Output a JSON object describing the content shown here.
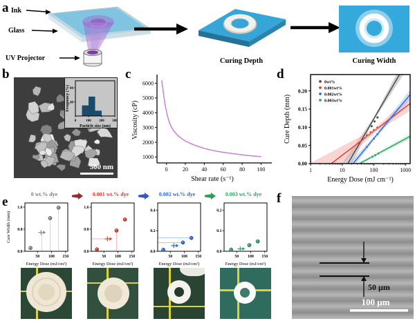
{
  "panels": {
    "a": "a",
    "b": "b",
    "c": "c",
    "d": "d",
    "e": "e",
    "f": "f"
  },
  "panel_a": {
    "ink_label": "Ink",
    "glass_label": "Glass",
    "uv_label": "UV Projector",
    "curing_depth_caption": "Curing Depth",
    "curing_width_caption": "Curing Width",
    "colors": {
      "slab_blue": "#35a8dc",
      "ink_blue": "#7cc3e2",
      "uv_purple": "#9d63cc"
    }
  },
  "panel_b": {
    "scale_bar_label": "500 nm"
  },
  "panel_e": {
    "ylabel": "Cure Width (mm)",
    "xlabel": "Energy Dose (mJ/cm²)",
    "titles": [
      {
        "label": "0 wt.% dye",
        "color": "#7f7f7f"
      },
      {
        "label": "0.001 wt.% dye",
        "color": "#e8392f"
      },
      {
        "label": "0.002 wt.% dye",
        "color": "#2d6ae3"
      },
      {
        "label": "0.003 wt.% dye",
        "color": "#27a85f"
      }
    ],
    "arrows": [
      "#8f2f2f",
      "#3a55c0",
      "#2f9e55"
    ]
  },
  "panel_f": {
    "gap_label": "50 µm",
    "scale_bar_label": "100 µm"
  },
  "chart_data": [
    {
      "id": "particle-hist",
      "type": "bar",
      "xlabel": "Particle size (nm)",
      "ylabel": "Frequency (%)",
      "xlim": [
        0,
        300
      ],
      "ylim": [
        0,
        100
      ],
      "xticks": [
        0,
        100,
        200,
        300
      ],
      "yticks": [
        40,
        80
      ],
      "bars": [
        {
          "from": 50,
          "to": 100,
          "value": 30
        },
        {
          "from": 100,
          "to": 150,
          "value": 55
        },
        {
          "from": 150,
          "to": 200,
          "value": 15
        }
      ],
      "bar_color": "#1b4a6b"
    },
    {
      "id": "viscosity",
      "type": "line",
      "xlabel": "Shear rate (s⁻¹)",
      "ylabel": "Viscosity (cP)",
      "xlim": [
        -10,
        107
      ],
      "ylim": [
        600,
        6400
      ],
      "xticks": [
        0,
        20,
        40,
        60,
        80,
        100
      ],
      "yticks": [
        1000,
        2000,
        3000,
        4000,
        5000,
        6000
      ],
      "color": "#c77fdb",
      "points": [
        [
          -5,
          6200
        ],
        [
          -3,
          5200
        ],
        [
          -1,
          4400
        ],
        [
          1,
          3800
        ],
        [
          3,
          3350
        ],
        [
          5,
          3050
        ],
        [
          8,
          2750
        ],
        [
          12,
          2450
        ],
        [
          16,
          2250
        ],
        [
          20,
          2080
        ],
        [
          26,
          1900
        ],
        [
          32,
          1750
        ],
        [
          40,
          1580
        ],
        [
          50,
          1430
        ],
        [
          60,
          1320
        ],
        [
          70,
          1230
        ],
        [
          80,
          1150
        ],
        [
          90,
          1080
        ],
        [
          100,
          1020
        ]
      ]
    },
    {
      "id": "cure-depth",
      "type": "logfit",
      "xlabel": "Energy Dose (mJ cm⁻²)",
      "ylabel": "Cure Depth (mm)",
      "xlim": [
        1,
        1400
      ],
      "ylim": [
        0,
        0.245
      ],
      "xticks": [
        1,
        10,
        100,
        1000
      ],
      "yticks": [
        0,
        0.05,
        0.1,
        0.15,
        0.2
      ],
      "ytick_labels": [
        "0.00",
        "0.05",
        "0.10",
        "0.15",
        "0.20"
      ],
      "series": [
        {
          "name": "0wt%",
          "color": "#4a4a4a",
          "band": "#9a9a9a",
          "x0": 15,
          "k": 0.15,
          "wl": 0.05,
          "wp": 0.004,
          "wr": 0.022,
          "points": [
            [
              85,
              0.103
            ],
            [
              105,
              0.116
            ],
            [
              130,
              0.127
            ]
          ]
        },
        {
          "name": "0.001wt%",
          "color": "#e8392f",
          "band": "#f2a19b",
          "x0": 4.5,
          "k": 0.0663,
          "wl": 0.045,
          "wp": 0.005,
          "wr": 0.02,
          "points": [
            [
              60,
              0.078
            ],
            [
              80,
              0.086
            ],
            [
              100,
              0.092
            ],
            [
              130,
              0.099
            ]
          ]
        },
        {
          "name": "0.002wt%",
          "color": "#2d6ae3",
          "band": "#9bb8f0",
          "x0": 22,
          "k": 0.1053,
          "wl": 0.03,
          "wp": 0.004,
          "wr": 0.014,
          "points": [
            [
              60,
              0.046
            ],
            [
              100,
              0.069
            ],
            [
              130,
              0.081
            ]
          ]
        },
        {
          "name": "0.003wt%",
          "color": "#27a85f",
          "band": "#9fd8b8",
          "x0": 35,
          "k": 0.0468,
          "wl": 0.012,
          "wp": 0.003,
          "wr": 0.007,
          "points": [
            [
              90,
              0.019
            ],
            [
              110,
              0.023
            ],
            [
              140,
              0.028
            ]
          ]
        }
      ]
    },
    {
      "id": "cw-0",
      "type": "scatter",
      "color": "#8a8a8a",
      "xlabel": "Energy Dose (mJ/cm²)",
      "ylabel": "Cure Width (mm)",
      "xlim": [
        5,
        158
      ],
      "ylim": [
        0,
        1.75
      ],
      "xticks": [
        50,
        100,
        150
      ],
      "yticks": [
        0,
        0.8,
        1.6
      ],
      "ytick_labels": [
        "0.0",
        "0.8",
        "1.6"
      ],
      "points": [
        [
          25,
          0.12
        ],
        [
          65,
          0.68
        ],
        [
          95,
          1.2
        ],
        [
          125,
          1.58
        ]
      ],
      "special_index": 1,
      "guides": [
        {
          "t": "v",
          "i": 1
        },
        {
          "t": "v",
          "i": 2
        },
        {
          "t": "v",
          "i": 3
        }
      ]
    },
    {
      "id": "cw-1",
      "type": "scatter",
      "color": "#e8392f",
      "xlabel": "Energy Dose (mJ/cm²)",
      "ylabel": "",
      "xlim": [
        5,
        158
      ],
      "ylim": [
        0,
        1.75
      ],
      "xticks": [
        50,
        100,
        150
      ],
      "yticks": [
        0,
        0.8,
        1.6
      ],
      "ytick_labels": [
        "0.0",
        "0.8",
        "1.6"
      ],
      "points": [
        [
          25,
          0.07
        ],
        [
          65,
          0.45
        ],
        [
          95,
          0.75
        ],
        [
          125,
          1.15
        ]
      ],
      "special_index": 1,
      "guides": [
        {
          "t": "h",
          "i": 1
        },
        {
          "t": "v",
          "i": 2
        }
      ]
    },
    {
      "id": "cw-2",
      "type": "scatter",
      "color": "#2d6ae3",
      "xlabel": "Energy Dose (mJ/cm²)",
      "ylabel": "",
      "xlim": [
        5,
        158
      ],
      "ylim": [
        0,
        0.47
      ],
      "xticks": [
        50,
        100,
        150
      ],
      "yticks": [
        0,
        0.2,
        0.4
      ],
      "ytick_labels": [
        "0.0",
        "0.2",
        "0.4"
      ],
      "points": [
        [
          25,
          0.015
        ],
        [
          65,
          0.055
        ],
        [
          95,
          0.085
        ],
        [
          125,
          0.13
        ]
      ],
      "special_index": 1,
      "guides": [
        {
          "t": "h",
          "i": 2
        },
        {
          "t": "h",
          "i": 3
        }
      ]
    },
    {
      "id": "cw-3",
      "type": "scatter",
      "color": "#27a85f",
      "xlabel": "Energy Dose (mJ/cm²)",
      "ylabel": "",
      "xlim": [
        5,
        158
      ],
      "ylim": [
        0,
        0.235
      ],
      "xticks": [
        50,
        100,
        150
      ],
      "yticks": [
        0,
        0.1,
        0.2
      ],
      "ytick_labels": [
        "0.0",
        "0.1",
        "0.2"
      ],
      "points": [
        [
          30,
          0.008
        ],
        [
          65,
          0.012
        ],
        [
          95,
          0.03
        ],
        [
          125,
          0.048
        ]
      ],
      "special_index": 1,
      "guides": []
    }
  ]
}
